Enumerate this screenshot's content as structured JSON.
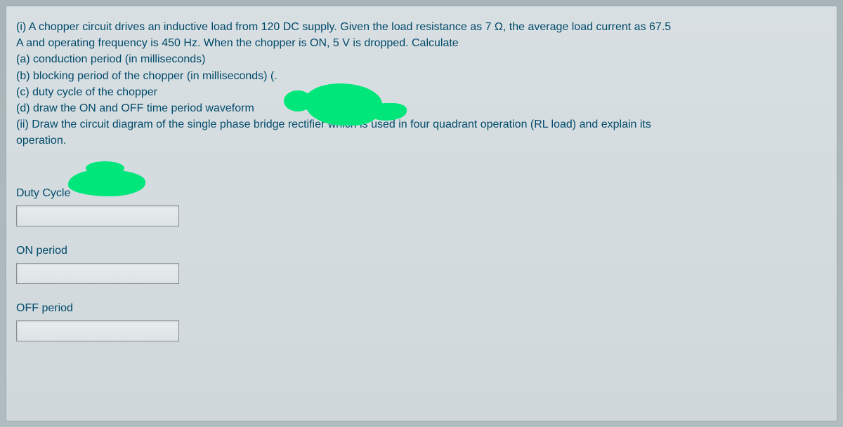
{
  "colors": {
    "text": "#004a6a",
    "panel_bg": "#d4dcdf",
    "page_bg": "#b8c4c8",
    "input_border": "#888f92",
    "scribble": "#00e67a"
  },
  "question": {
    "lines": [
      "(i) A chopper circuit drives an inductive load from 120 DC supply. Given the load resistance as 7 Ω, the average load current as 67.5",
      "A and operating frequency is 450 Hz. When the chopper is ON, 5 V is dropped.  Calculate",
      "(a) conduction period (in milliseconds)",
      "(b) blocking period of the chopper (in milliseconds) (.",
      "(c) duty cycle of the chopper",
      "(d) draw the ON and OFF time period waveform",
      "(ii) Draw the circuit diagram of the single phase bridge rectifier which is used in four quadrant operation (RL load) and explain its",
      "operation."
    ]
  },
  "fields": [
    {
      "label": "Duty Cycle",
      "value": "",
      "name": "duty-cycle-input"
    },
    {
      "label": "ON period",
      "value": "",
      "name": "on-period-input"
    },
    {
      "label": "OFF period",
      "value": "",
      "name": "off-period-input"
    }
  ]
}
